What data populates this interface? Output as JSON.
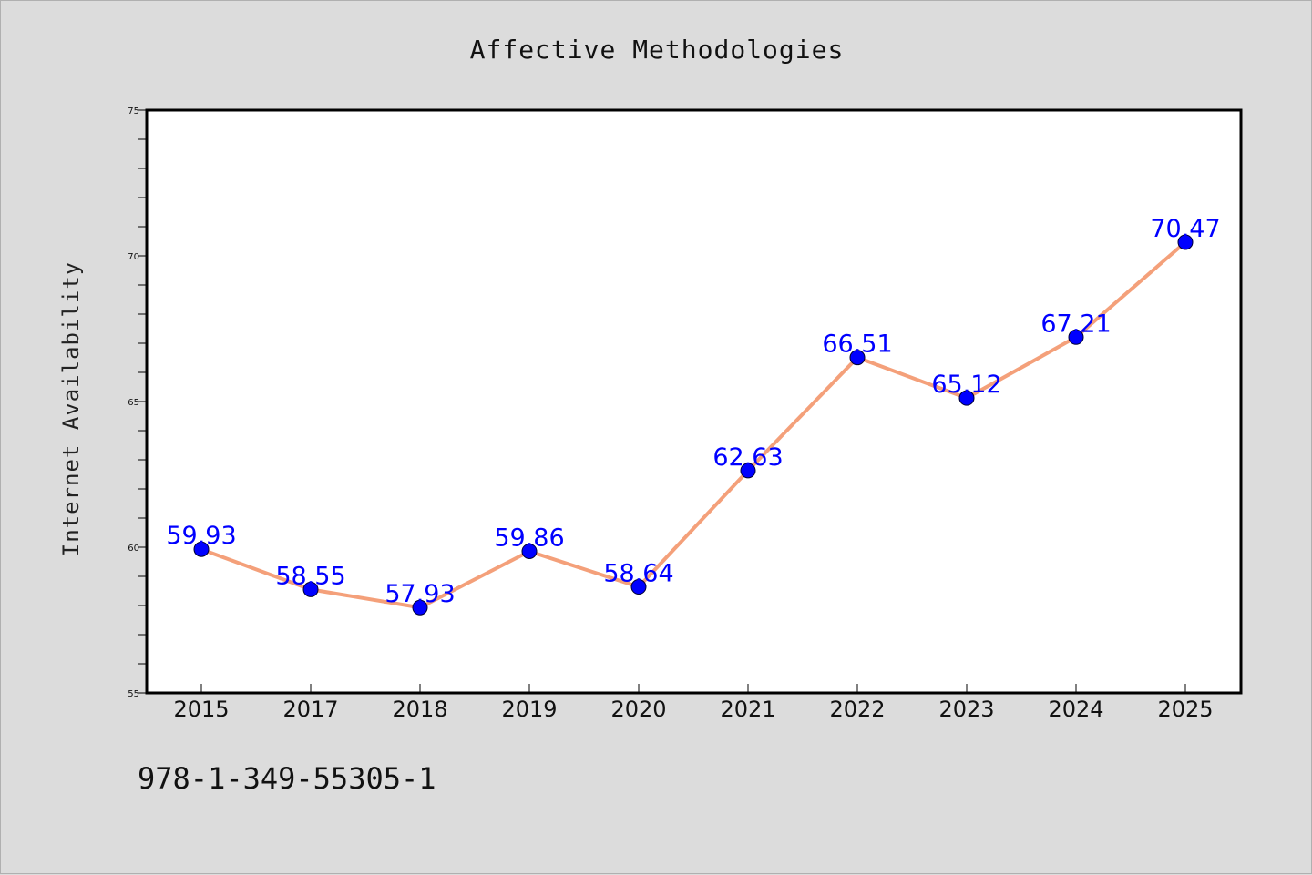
{
  "chart_data": {
    "type": "line",
    "title": "Affective Methodologies",
    "xlabel": "",
    "ylabel": "Internet Availability",
    "categories": [
      "2015",
      "2017",
      "2018",
      "2019",
      "2020",
      "2021",
      "2022",
      "2023",
      "2024",
      "2025"
    ],
    "series": [
      {
        "values": [
          59.93,
          58.55,
          57.93,
          59.86,
          58.64,
          62.63,
          66.51,
          65.12,
          67.21,
          70.47
        ],
        "color": "#f4a07a",
        "marker_color": "#0000ff"
      }
    ],
    "data_labels": [
      "59.93",
      "58.55",
      "57.93",
      "59.86",
      "58.64",
      "62.63",
      "66.51",
      "65.12",
      "67.21",
      "70.47"
    ],
    "ylim": [
      55,
      75
    ],
    "yticks": [
      "55",
      "60",
      "65",
      "70",
      "75"
    ],
    "grid": false,
    "legend": "none",
    "label_color": "#0000ff"
  },
  "footnote": "978-1-349-55305-1"
}
